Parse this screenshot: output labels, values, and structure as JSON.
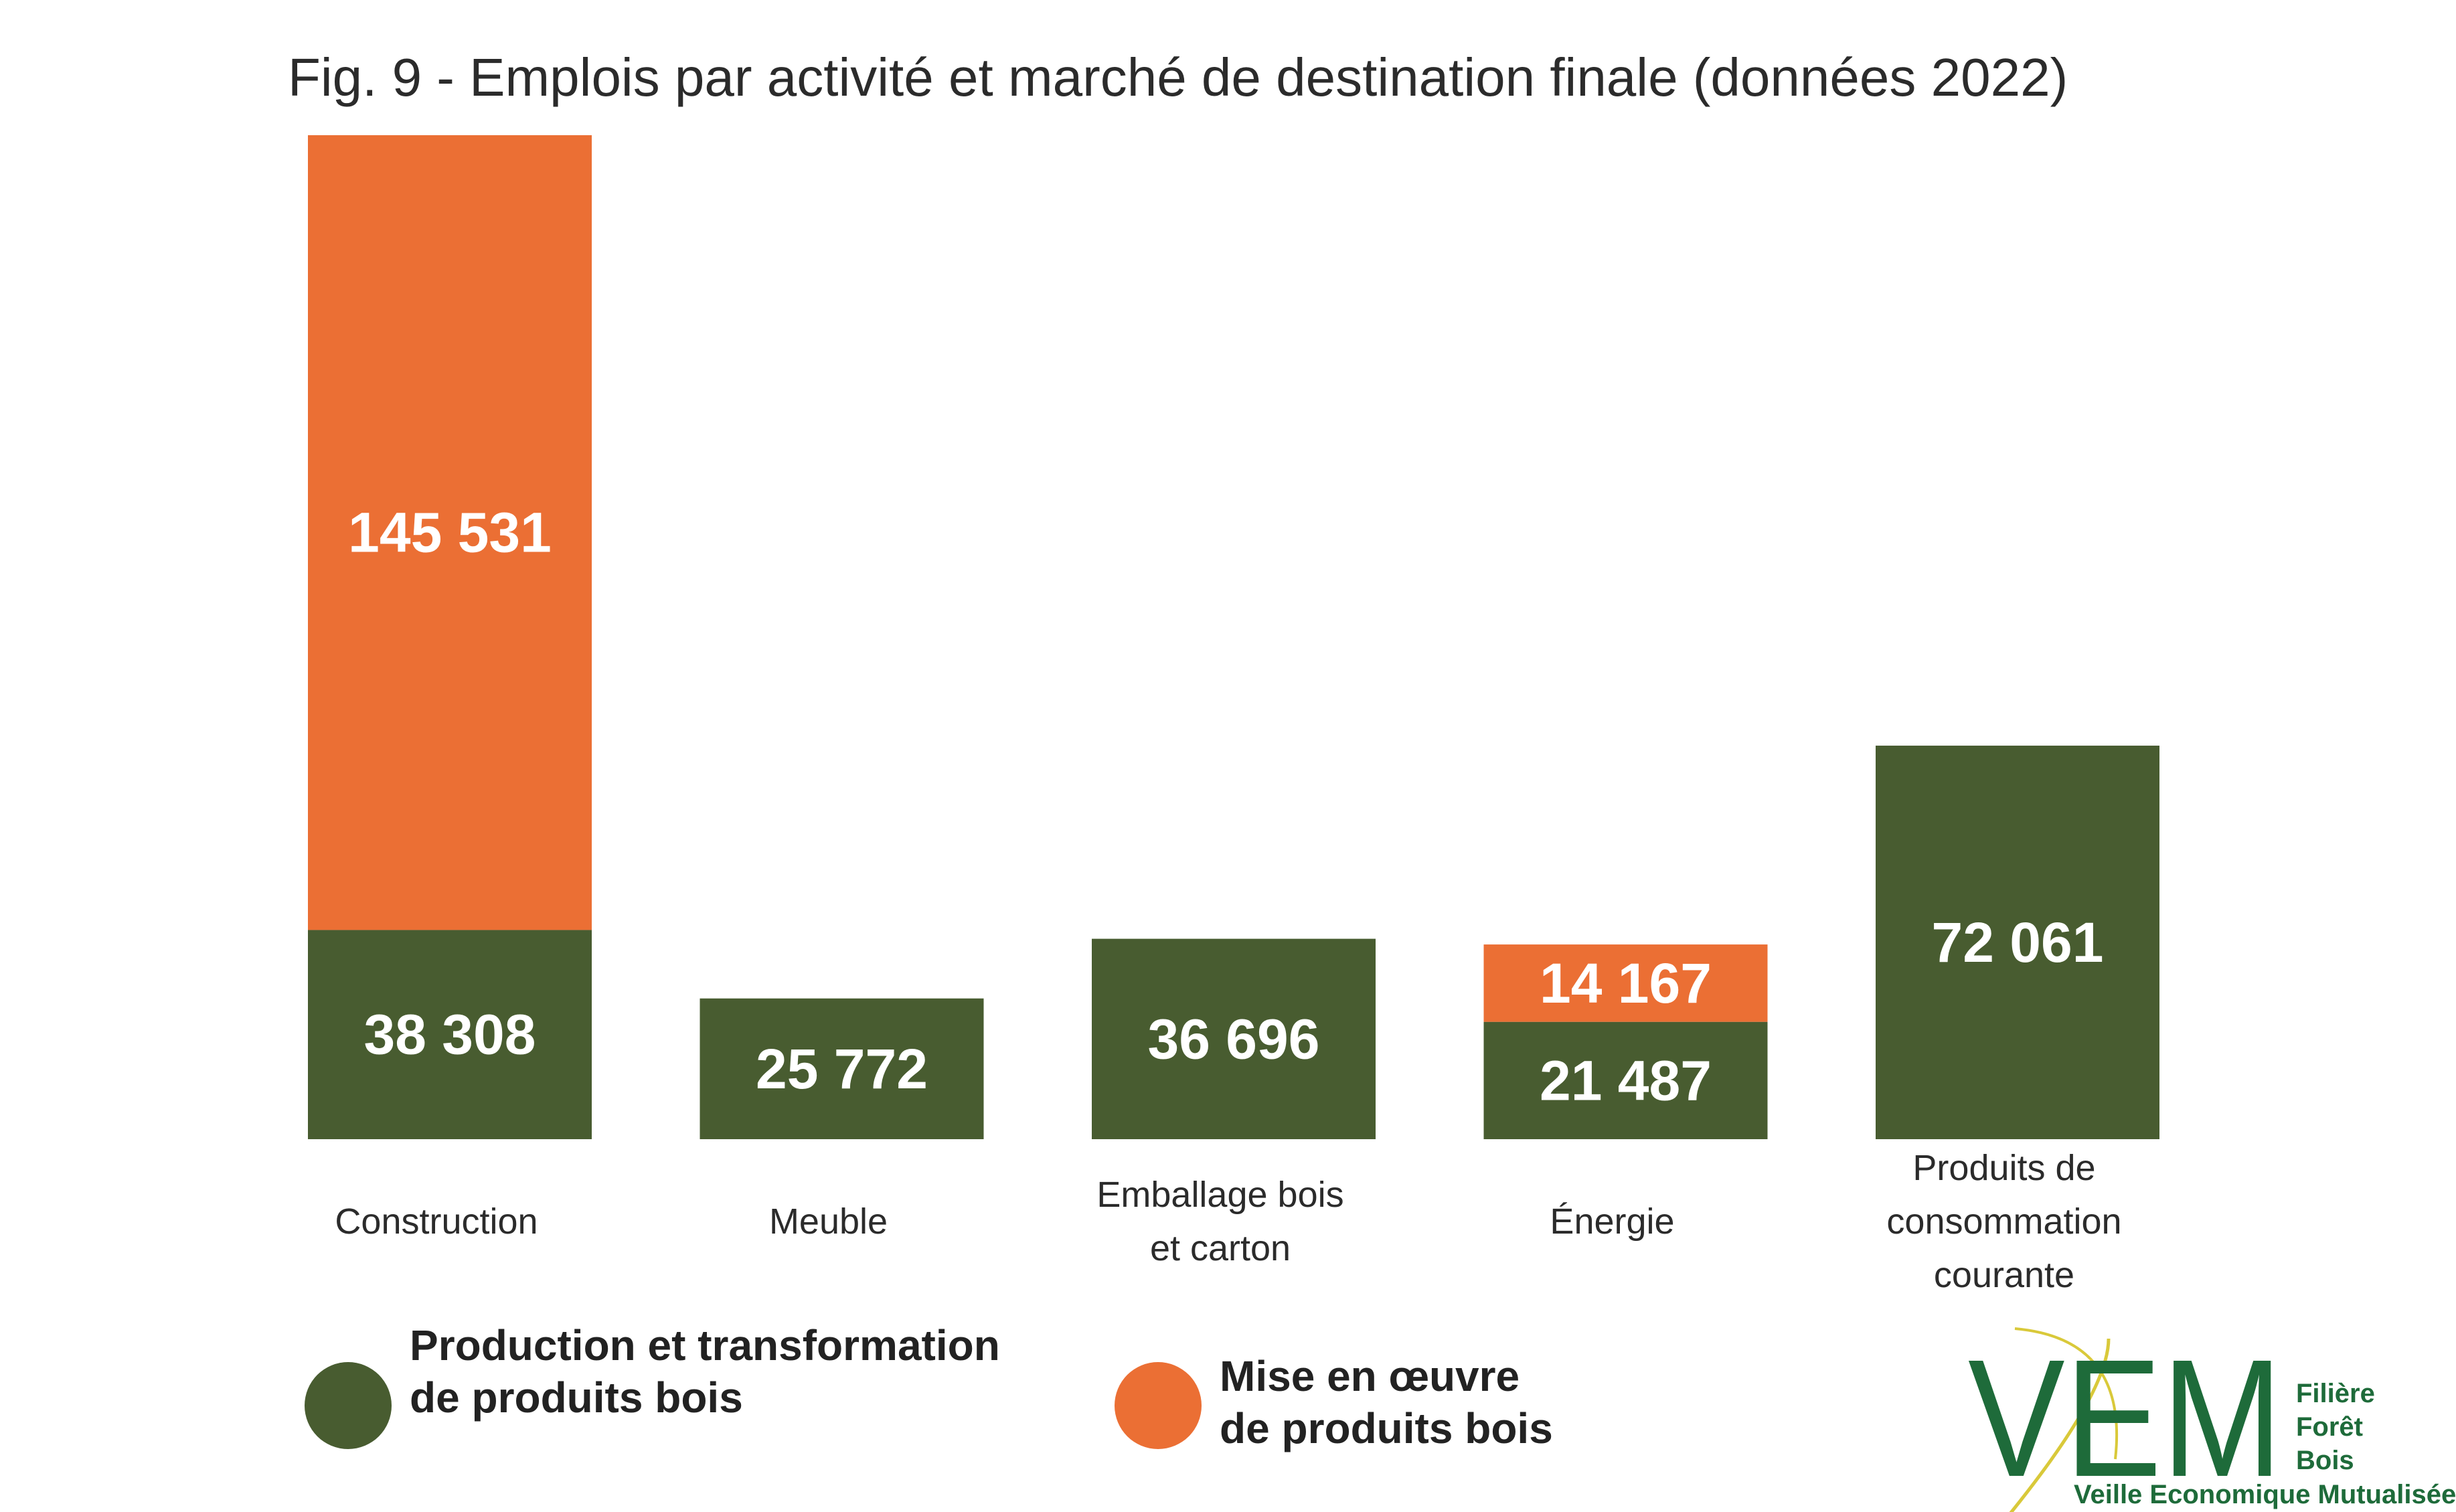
{
  "chart_data": {
    "type": "bar",
    "stacked": true,
    "title": "Fig. 9 - Emplois par activité et marché de destination finale (données 2022)",
    "categories": [
      [
        "Construction"
      ],
      [
        "Meuble"
      ],
      [
        "Emballage bois",
        "et carton"
      ],
      [
        "Énergie"
      ],
      [
        "Produits de",
        "consommation",
        "courante"
      ]
    ],
    "series": [
      {
        "name": "Production et transformation de produits bois",
        "legend_lines": [
          "Production et transformation",
          "de produits bois"
        ],
        "color": "#485c30",
        "values": [
          38308,
          25772,
          36696,
          21487,
          72061
        ],
        "labels": [
          "38 308",
          "25 772",
          "36 696",
          "21 487",
          "72 061"
        ]
      },
      {
        "name": "Mise en œuvre de produits bois",
        "legend_lines": [
          "Mise en œuvre",
          "de produits bois"
        ],
        "color": "#eb6f34",
        "values": [
          145531,
          0,
          0,
          14167,
          0
        ],
        "labels": [
          "145 531",
          "",
          "",
          "14 167",
          ""
        ]
      }
    ],
    "ylim": [
      0,
      183839
    ],
    "grid": false,
    "legend_position": "bottom-left"
  },
  "logo": {
    "letters": "VEM",
    "lines": [
      "Filière",
      "Forêt",
      "Bois"
    ],
    "tagline": "Veille Economique Mutualisée"
  }
}
